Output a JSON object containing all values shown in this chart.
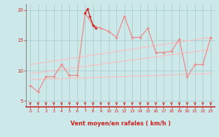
{
  "xlabel": "Vent moyen/en rafales ( km/h )",
  "xlim": [
    -0.5,
    23.5
  ],
  "ylim": [
    4,
    21
  ],
  "yticks": [
    5,
    10,
    15,
    20
  ],
  "xticks": [
    0,
    1,
    2,
    3,
    4,
    5,
    6,
    7,
    8,
    9,
    10,
    11,
    12,
    13,
    14,
    15,
    16,
    17,
    18,
    19,
    20,
    21,
    22,
    23
  ],
  "bg_color": "#cce8e8",
  "grid_color": "#aacccc",
  "series_main_x": [
    0,
    1,
    2,
    3,
    4,
    5,
    6,
    7,
    8,
    9,
    10,
    11,
    12,
    13,
    14,
    15,
    16,
    17,
    18,
    19,
    20,
    21,
    22,
    23
  ],
  "series_main_y": [
    7.5,
    6.5,
    9.0,
    9.0,
    11.0,
    9.2,
    9.2,
    19.5,
    17.5,
    17.0,
    16.5,
    15.5,
    19.0,
    15.5,
    15.5,
    17.0,
    13.0,
    13.0,
    13.2,
    15.2,
    9.0,
    11.0,
    11.0,
    15.5
  ],
  "series_dark_x": [
    7,
    7.3,
    7.6,
    8.0,
    8.4
  ],
  "series_dark_y": [
    19.5,
    20.2,
    19.0,
    17.5,
    17.0
  ],
  "trend1_x": [
    0,
    23
  ],
  "trend1_y": [
    8.5,
    9.5
  ],
  "trend2_x": [
    0,
    23
  ],
  "trend2_y": [
    9.5,
    13.5
  ],
  "trend3_x": [
    0,
    23
  ],
  "trend3_y": [
    11.0,
    15.5
  ],
  "main_color": "#ee8888",
  "dark_color": "#cc2222",
  "trend_color": "#ffbbbb",
  "arrow_color": "#cc2222",
  "tick_color": "#cc2222",
  "spine_color": "#888888",
  "bottom_spine_color": "#cc2222"
}
